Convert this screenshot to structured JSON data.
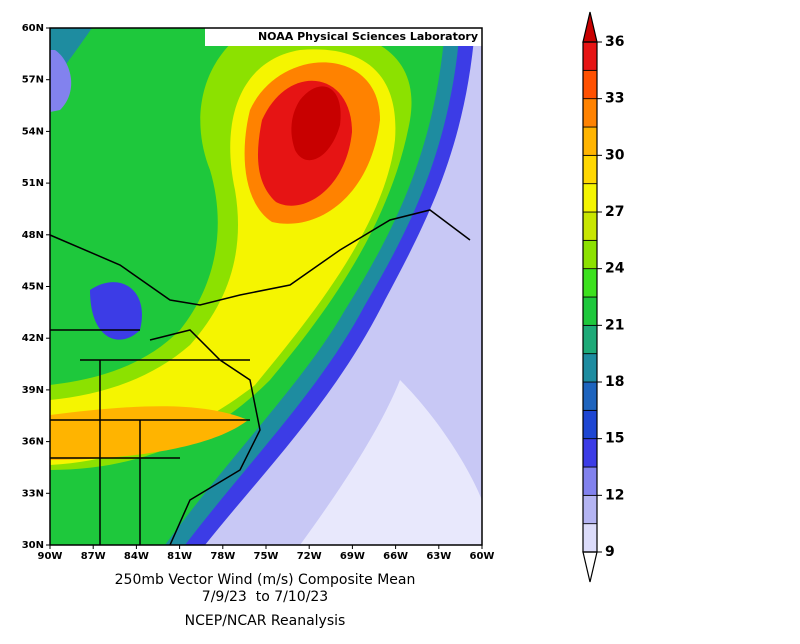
{
  "map": {
    "watermark": "NOAA Physical Sciences Laboratory",
    "lat_labels": [
      "60N",
      "57N",
      "54N",
      "51N",
      "48N",
      "45N",
      "42N",
      "39N",
      "36N",
      "33N",
      "30N"
    ],
    "lon_labels": [
      "90W",
      "87W",
      "84W",
      "81W",
      "78W",
      "75W",
      "72W",
      "69W",
      "66W",
      "63W",
      "60W"
    ],
    "title": "250mb Vector Wind (m/s) Composite Mean",
    "dates": "7/9/23  to 7/10/23",
    "source": "NCEP/NCAR Reanalysis"
  },
  "colorbar": {
    "min": 9,
    "max": 36,
    "ticks": [
      9,
      12,
      15,
      18,
      21,
      24,
      27,
      30,
      33,
      36
    ],
    "colors": [
      "#dcdcfa",
      "#b4b4f2",
      "#8282ee",
      "#3c3ce6",
      "#1e46d2",
      "#1e64be",
      "#1e8ca0",
      "#1eaa78",
      "#1ec83c",
      "#3ce11e",
      "#8ce100",
      "#c8e600",
      "#f5f500",
      "#ffd700",
      "#ffb400",
      "#ff8200",
      "#ff5000",
      "#e61414"
    ],
    "under_color": "#ffffff",
    "over_color": "#c80000"
  }
}
